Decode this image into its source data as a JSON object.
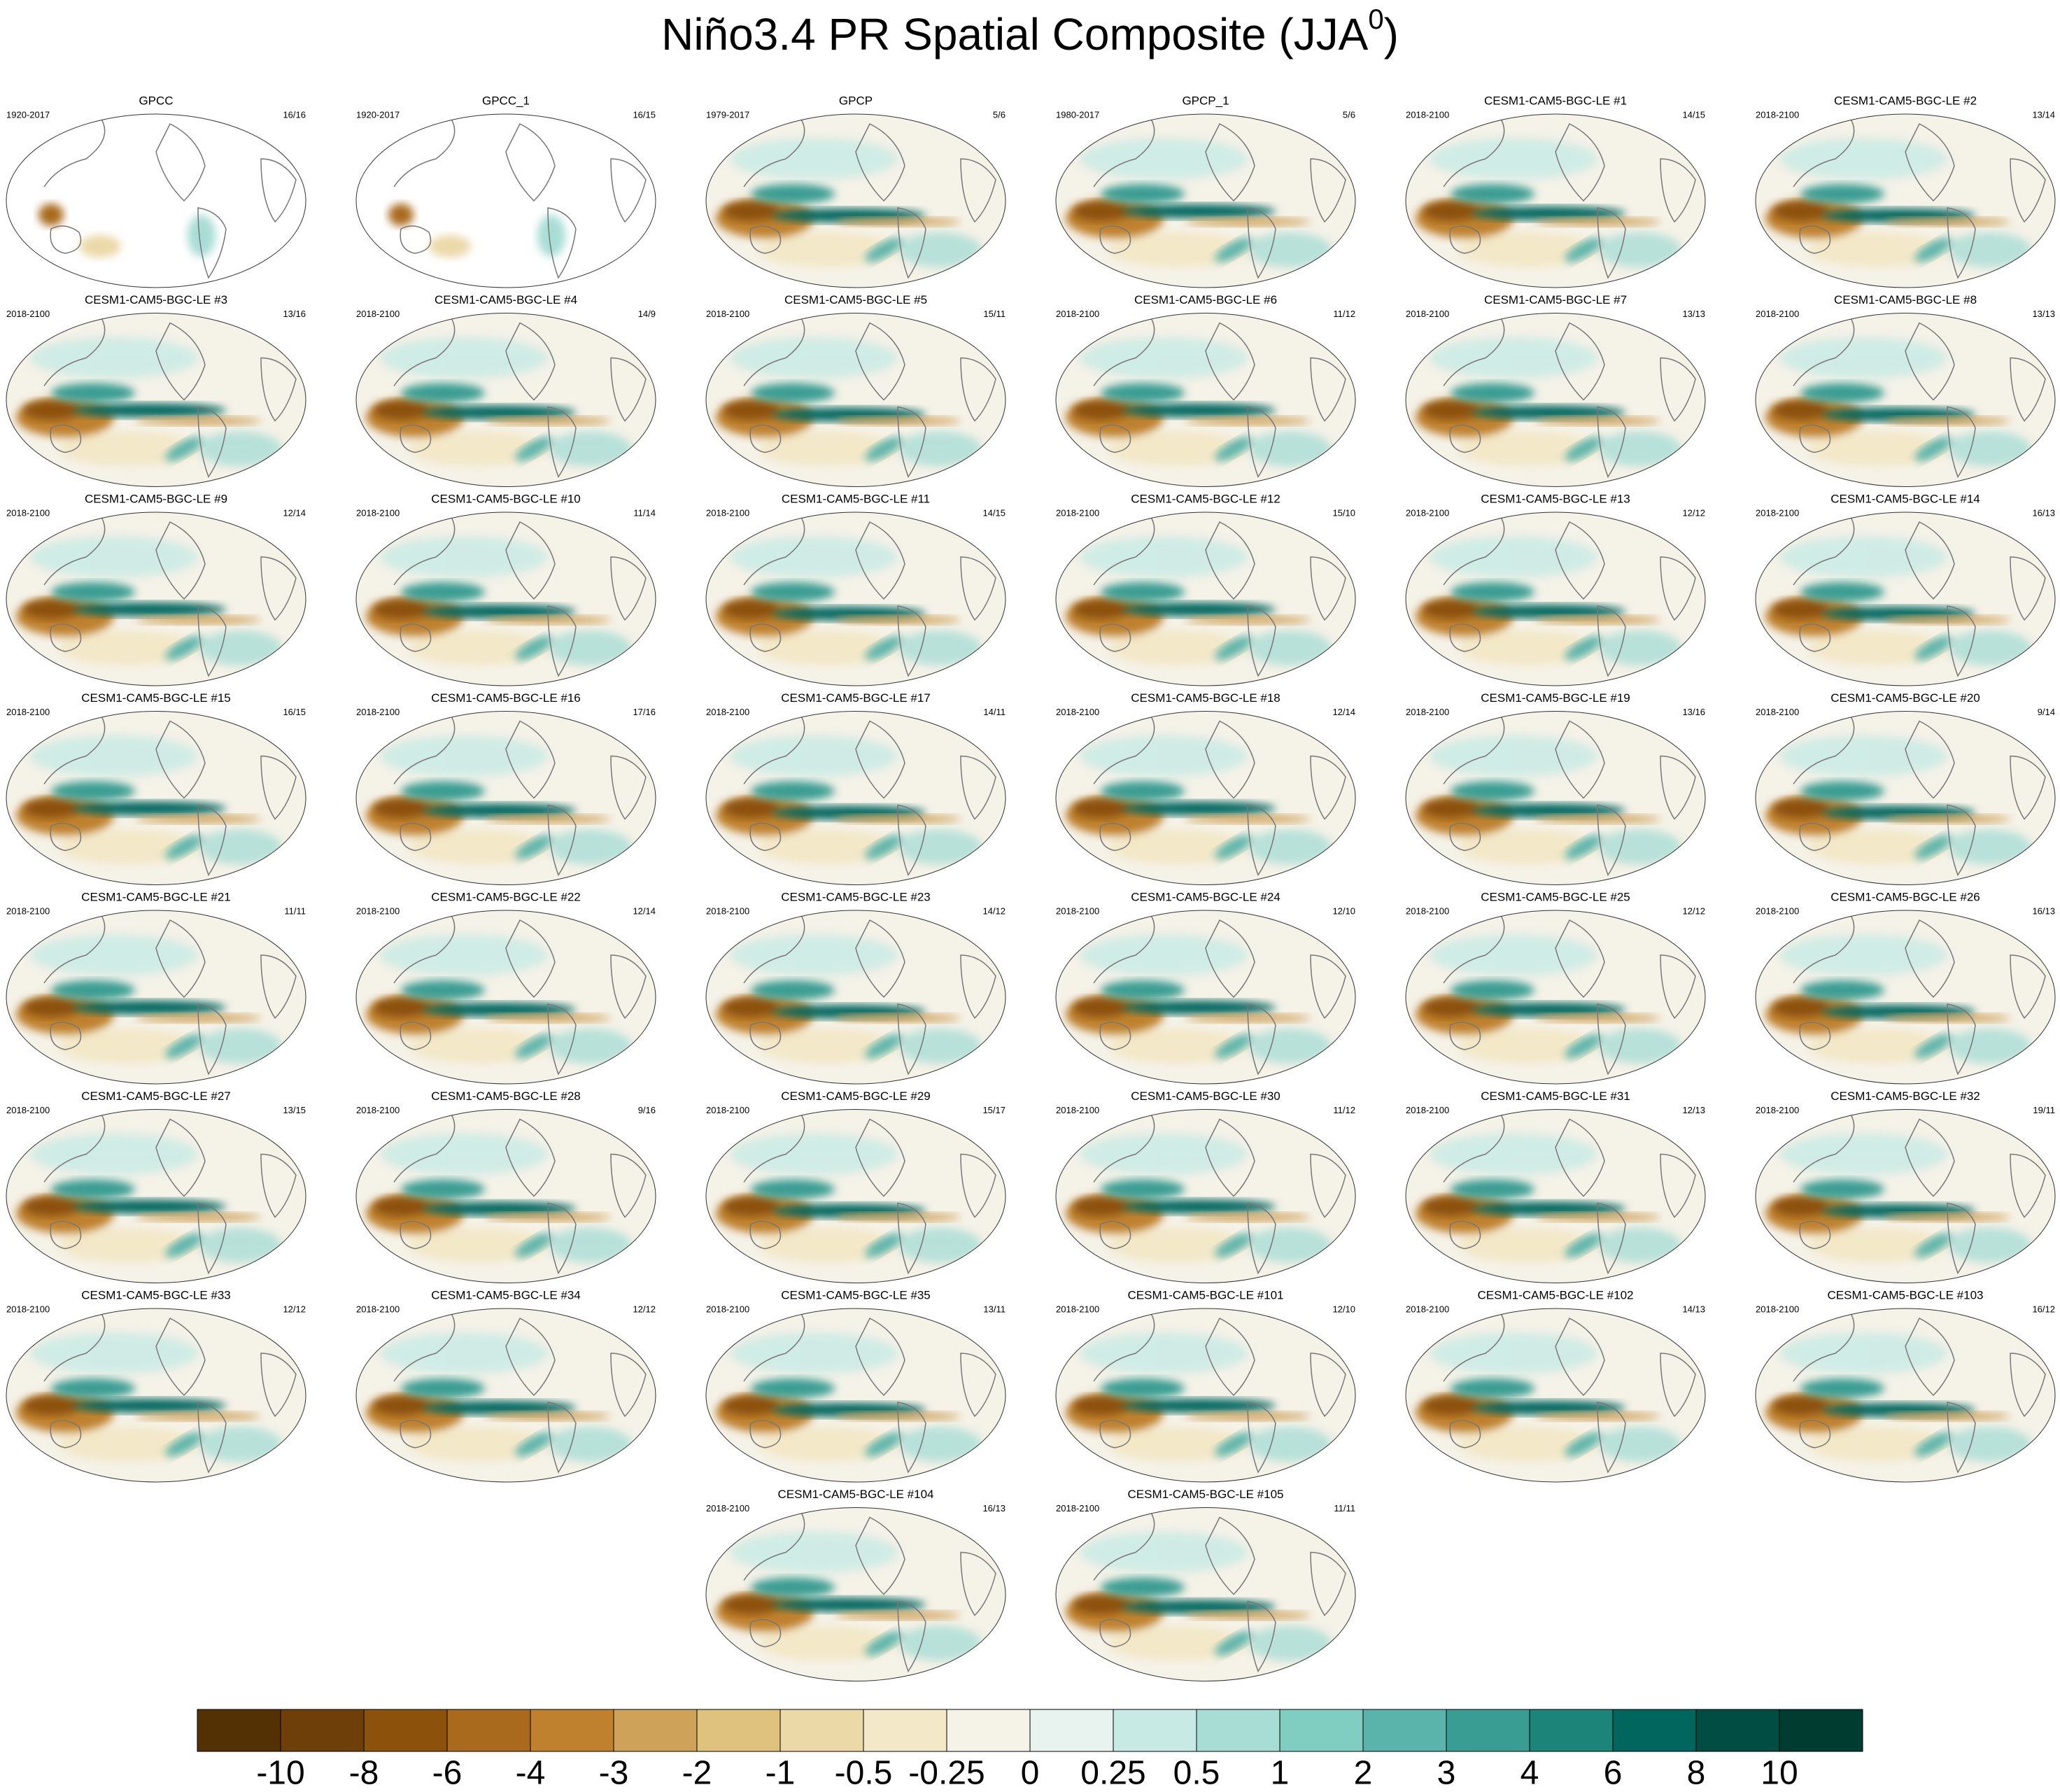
{
  "title": "Niño3.4 PR Spatial Composite (JJA",
  "title_superscript": "0",
  "title_end": ")",
  "panels": [
    {
      "title": "GPCC",
      "period": "1920-2017",
      "count": "16/16"
    },
    {
      "title": "GPCC_1",
      "period": "1920-2017",
      "count": "16/15"
    },
    {
      "title": "GPCP",
      "period": "1979-2017",
      "count": "5/6"
    },
    {
      "title": "GPCP_1",
      "period": "1980-2017",
      "count": "5/6"
    },
    {
      "title": "CESM1-CAM5-BGC-LE #1",
      "period": "2018-2100",
      "count": "14/15"
    },
    {
      "title": "CESM1-CAM5-BGC-LE #2",
      "period": "2018-2100",
      "count": "13/14"
    },
    {
      "title": "CESM1-CAM5-BGC-LE #3",
      "period": "2018-2100",
      "count": "13/16"
    },
    {
      "title": "CESM1-CAM5-BGC-LE #4",
      "period": "2018-2100",
      "count": "14/9"
    },
    {
      "title": "CESM1-CAM5-BGC-LE #5",
      "period": "2018-2100",
      "count": "15/11"
    },
    {
      "title": "CESM1-CAM5-BGC-LE #6",
      "period": "2018-2100",
      "count": "11/12"
    },
    {
      "title": "CESM1-CAM5-BGC-LE #7",
      "period": "2018-2100",
      "count": "13/13"
    },
    {
      "title": "CESM1-CAM5-BGC-LE #8",
      "period": "2018-2100",
      "count": "13/13"
    },
    {
      "title": "CESM1-CAM5-BGC-LE #9",
      "period": "2018-2100",
      "count": "12/14"
    },
    {
      "title": "CESM1-CAM5-BGC-LE #10",
      "period": "2018-2100",
      "count": "11/14"
    },
    {
      "title": "CESM1-CAM5-BGC-LE #11",
      "period": "2018-2100",
      "count": "14/15"
    },
    {
      "title": "CESM1-CAM5-BGC-LE #12",
      "period": "2018-2100",
      "count": "15/10"
    },
    {
      "title": "CESM1-CAM5-BGC-LE #13",
      "period": "2018-2100",
      "count": "12/12"
    },
    {
      "title": "CESM1-CAM5-BGC-LE #14",
      "period": "2018-2100",
      "count": "16/13"
    },
    {
      "title": "CESM1-CAM5-BGC-LE #15",
      "period": "2018-2100",
      "count": "16/15"
    },
    {
      "title": "CESM1-CAM5-BGC-LE #16",
      "period": "2018-2100",
      "count": "17/16"
    },
    {
      "title": "CESM1-CAM5-BGC-LE #17",
      "period": "2018-2100",
      "count": "14/11"
    },
    {
      "title": "CESM1-CAM5-BGC-LE #18",
      "period": "2018-2100",
      "count": "12/14"
    },
    {
      "title": "CESM1-CAM5-BGC-LE #19",
      "period": "2018-2100",
      "count": "13/16"
    },
    {
      "title": "CESM1-CAM5-BGC-LE #20",
      "period": "2018-2100",
      "count": "9/14"
    },
    {
      "title": "CESM1-CAM5-BGC-LE #21",
      "period": "2018-2100",
      "count": "11/11"
    },
    {
      "title": "CESM1-CAM5-BGC-LE #22",
      "period": "2018-2100",
      "count": "12/14"
    },
    {
      "title": "CESM1-CAM5-BGC-LE #23",
      "period": "2018-2100",
      "count": "14/12"
    },
    {
      "title": "CESM1-CAM5-BGC-LE #24",
      "period": "2018-2100",
      "count": "12/10"
    },
    {
      "title": "CESM1-CAM5-BGC-LE #25",
      "period": "2018-2100",
      "count": "12/12"
    },
    {
      "title": "CESM1-CAM5-BGC-LE #26",
      "period": "2018-2100",
      "count": "16/13"
    },
    {
      "title": "CESM1-CAM5-BGC-LE #27",
      "period": "2018-2100",
      "count": "13/15"
    },
    {
      "title": "CESM1-CAM5-BGC-LE #28",
      "period": "2018-2100",
      "count": "9/16"
    },
    {
      "title": "CESM1-CAM5-BGC-LE #29",
      "period": "2018-2100",
      "count": "15/17"
    },
    {
      "title": "CESM1-CAM5-BGC-LE #30",
      "period": "2018-2100",
      "count": "11/12"
    },
    {
      "title": "CESM1-CAM5-BGC-LE #31",
      "period": "2018-2100",
      "count": "12/13"
    },
    {
      "title": "CESM1-CAM5-BGC-LE #32",
      "period": "2018-2100",
      "count": "19/11"
    },
    {
      "title": "CESM1-CAM5-BGC-LE #33",
      "period": "2018-2100",
      "count": "12/12"
    },
    {
      "title": "CESM1-CAM5-BGC-LE #34",
      "period": "2018-2100",
      "count": "12/12"
    },
    {
      "title": "CESM1-CAM5-BGC-LE #35",
      "period": "2018-2100",
      "count": "13/11"
    },
    {
      "title": "CESM1-CAM5-BGC-LE #101",
      "period": "2018-2100",
      "count": "12/10"
    },
    {
      "title": "CESM1-CAM5-BGC-LE #102",
      "period": "2018-2100",
      "count": "14/13"
    },
    {
      "title": "CESM1-CAM5-BGC-LE #103",
      "period": "2018-2100",
      "count": "16/12"
    },
    {
      "title": "CESM1-CAM5-BGC-LE #104",
      "period": "2018-2100",
      "count": "16/13"
    },
    {
      "title": "CESM1-CAM5-BGC-LE #105",
      "period": "2018-2100",
      "count": "11/11"
    }
  ],
  "colorbar": {
    "levels": [
      -10,
      -8,
      -6,
      -4,
      -3,
      -2,
      -1,
      -0.5,
      -0.25,
      0,
      0.25,
      0.5,
      1,
      2,
      3,
      4,
      6,
      8,
      10
    ],
    "colors": [
      "#543005",
      "#6f3f0a",
      "#8c510a",
      "#a96a1e",
      "#bf812d",
      "#cfa25a",
      "#dfc27d",
      "#ebd9a8",
      "#f3e8c8",
      "#f5f2e8",
      "#e8f2ef",
      "#c7eae5",
      "#a8ddd5",
      "#80cdc1",
      "#5ab4ac",
      "#3a9d93",
      "#1d8479",
      "#01665e",
      "#014d43",
      "#003c30"
    ]
  }
}
